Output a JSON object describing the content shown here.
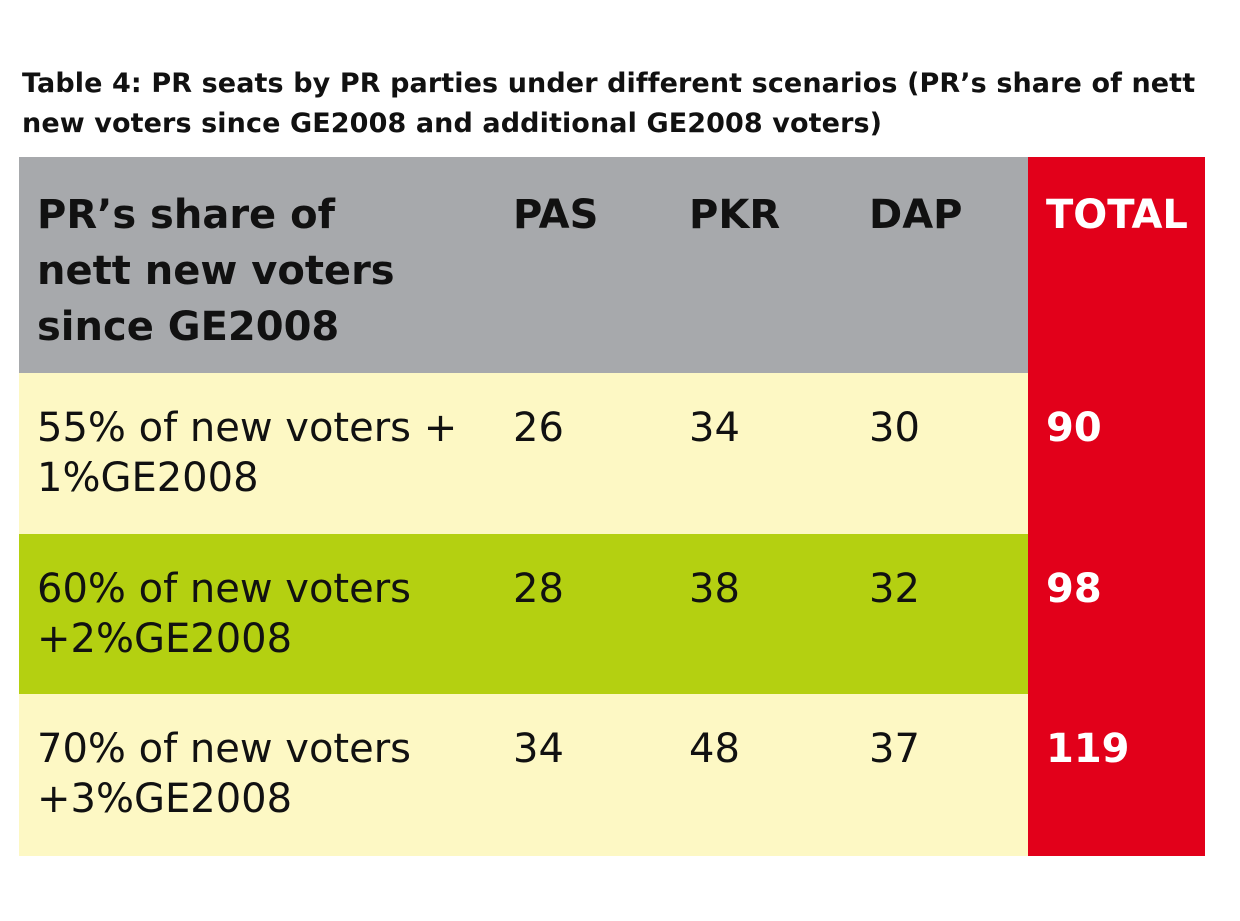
{
  "title": "Table 4: PR seats by PR parties under different scenarios (PR’s share of nett new voters since GE2008 and additional GE2008 voters)",
  "colors": {
    "header_bg": "#a7a9ac",
    "row_light": "#fdf8c4",
    "row_green": "#b4d011",
    "total_red": "#e2001a"
  },
  "table": {
    "headers": {
      "label": "PR’s share of nett new voters since GE2008",
      "pas": "PAS",
      "pkr": "PKR",
      "dap": "DAP",
      "total": "TOTAL"
    },
    "rows": [
      {
        "label": "55% of new voters + 1%GE2008",
        "pas": "26",
        "pkr": "34",
        "dap": "30",
        "total": "90"
      },
      {
        "label": "60% of new voters +2%GE2008",
        "pas": "28",
        "pkr": "38",
        "dap": "32",
        "total": "98"
      },
      {
        "label": "70% of new voters +3%GE2008",
        "pas": "34",
        "pkr": "48",
        "dap": "37",
        "total": "119"
      }
    ]
  }
}
